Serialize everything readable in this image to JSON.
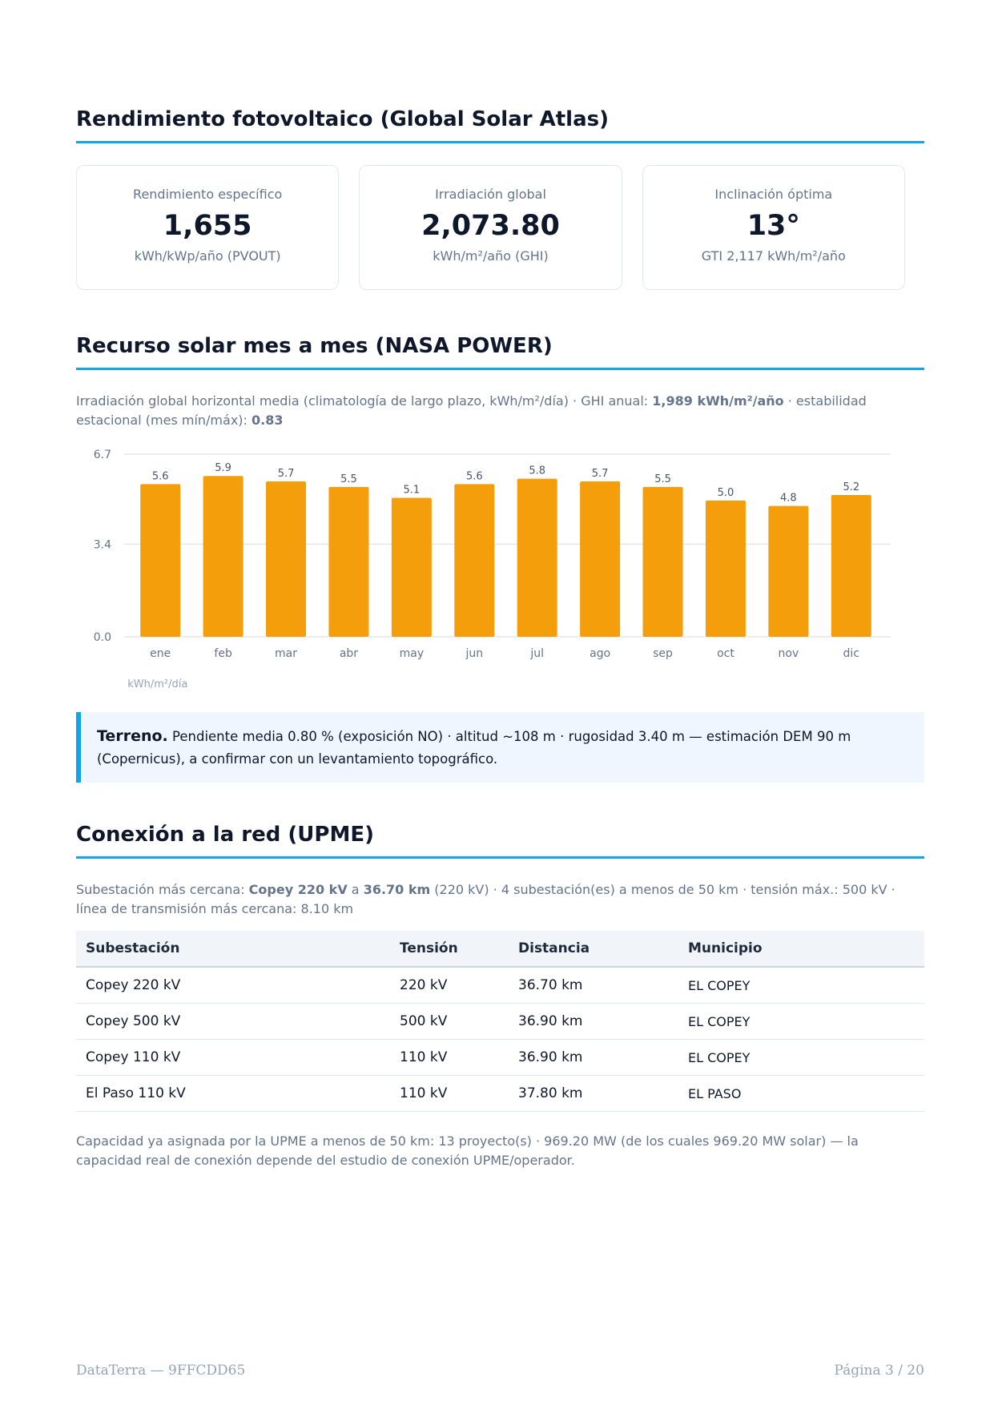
{
  "section1": {
    "title": "Rendimiento fotovoltaico (Global Solar Atlas)",
    "cards": [
      {
        "label": "Rendimiento específico",
        "value": "1,655",
        "unit": "kWh/kWp/año (PVOUT)"
      },
      {
        "label": "Irradiación global",
        "value": "2,073.80",
        "unit": "kWh/m²/año (GHI)"
      },
      {
        "label": "Inclinación óptima",
        "value": "13°",
        "unit": "GTI 2,117 kWh/m²/año"
      }
    ]
  },
  "section2": {
    "title": "Recurso solar mes a mes (NASA POWER)",
    "desc_pre": "Irradiación global horizontal media (climatología de largo plazo, kWh/m²/día) · GHI anual: ",
    "desc_ghi": "1,989 kWh/m²/año",
    "desc_mid": " · estabilidad estacional (mes mín/máx): ",
    "desc_ratio": "0.83"
  },
  "chart_data": {
    "type": "bar",
    "categories": [
      "ene",
      "feb",
      "mar",
      "abr",
      "may",
      "jun",
      "jul",
      "ago",
      "sep",
      "oct",
      "nov",
      "dic"
    ],
    "values": [
      5.6,
      5.9,
      5.7,
      5.5,
      5.1,
      5.6,
      5.8,
      5.7,
      5.5,
      5.0,
      4.8,
      5.2
    ],
    "value_labels": [
      "5.6",
      "5.9",
      "5.7",
      "5.5",
      "5.1",
      "5.6",
      "5.8",
      "5.7",
      "5.5",
      "5.0",
      "4.8",
      "5.2"
    ],
    "yticks": [
      "0.0",
      "3.4",
      "6.7"
    ],
    "ylim": [
      0,
      6.7
    ],
    "unit_label": "kWh/m²/día",
    "bar_color": "#f59e0b",
    "grid": true
  },
  "callout": {
    "lead": "Terreno.",
    "text": " Pendiente media 0.80 % (exposición NO) · altitud ~108 m · rugosidad 3.40 m — estimación DEM 90 m (Copernicus), a confirmar con un levantamiento topográfico."
  },
  "section3": {
    "title": "Conexión a la red (UPME)",
    "desc_pre": "Subestación más cercana: ",
    "desc_sub": "Copey 220 kV",
    "desc_a": " a ",
    "desc_dist": "36.70 km",
    "desc_post": " (220 kV) · 4 subestación(es) a menos de 50 km · tensión máx.: 500 kV · línea de transmisión más cercana: 8.10 km",
    "table": {
      "headers": [
        "Subestación",
        "Tensión",
        "Distancia",
        "Municipio"
      ],
      "rows": [
        [
          "Copey 220 kV",
          "220 kV",
          "36.70 km",
          "EL COPEY"
        ],
        [
          "Copey 500 kV",
          "500 kV",
          "36.90 km",
          "EL COPEY"
        ],
        [
          "Copey 110 kV",
          "110 kV",
          "36.90 km",
          "EL COPEY"
        ],
        [
          "El Paso 110 kV",
          "110 kV",
          "37.80 km",
          "EL PASO"
        ]
      ]
    },
    "footnote": "Capacidad ya asignada por la UPME a menos de 50 km: 13 proyecto(s) · 969.20 MW (de los cuales 969.20 MW solar) — la capacidad real de conexión depende del estudio de conexión UPME/operador."
  },
  "footer": {
    "left": "DataTerra — 9FFCDD65",
    "right": "Página 3 / 20"
  },
  "colors": {
    "accent": "#0ea5e9",
    "bar": "#f59e0b",
    "callout_bg": "#eff6ff"
  }
}
